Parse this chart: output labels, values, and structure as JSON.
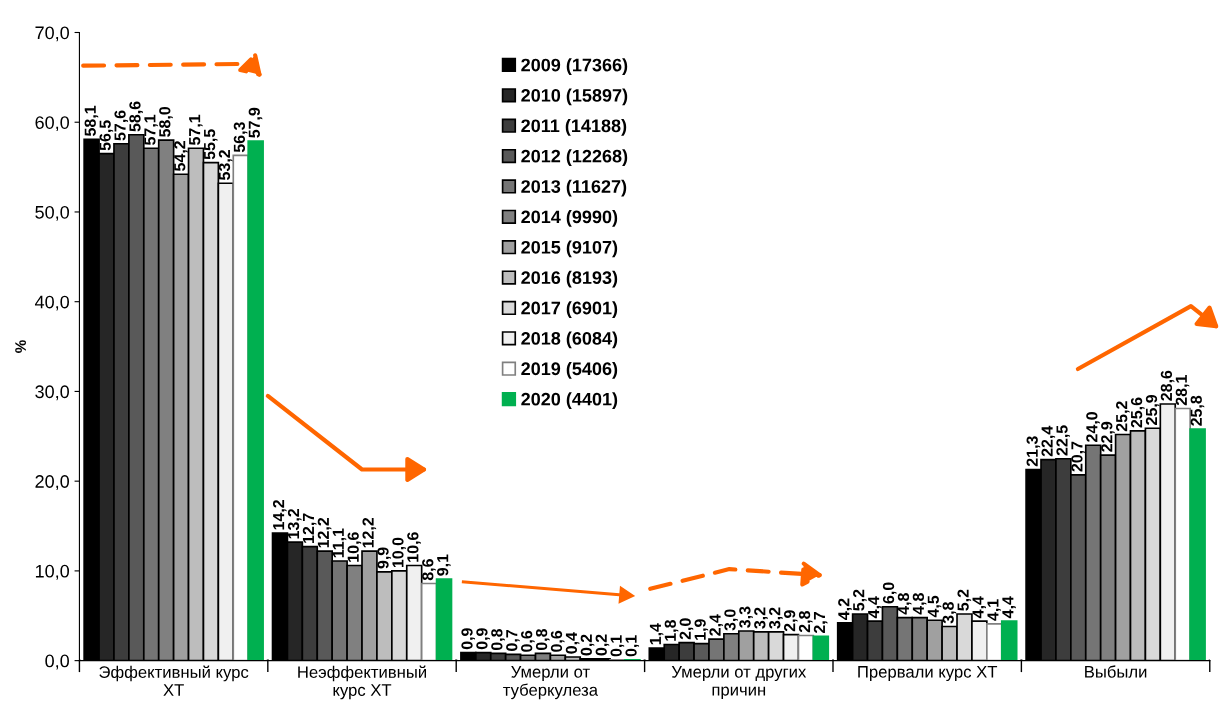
{
  "chart_data": {
    "type": "bar",
    "ylabel": "%",
    "categories": [
      "Эффективный курс\nХТ",
      "Неэффективный\nкурс ХТ",
      "Умерли от\nтуберкулеза",
      "Умерли от других\nпричин",
      "Прервали курс ХТ",
      "Выбыли"
    ],
    "ylim": [
      0,
      70
    ],
    "yticks": [
      {
        "value": 0,
        "label": "0,0"
      },
      {
        "value": 10,
        "label": "10,0"
      },
      {
        "value": 20,
        "label": "20,0"
      },
      {
        "value": 30,
        "label": "30,0"
      },
      {
        "value": 40,
        "label": "40,0"
      },
      {
        "value": 50,
        "label": "50,0"
      },
      {
        "value": 60,
        "label": "60,0"
      },
      {
        "value": 70,
        "label": "70,0"
      }
    ],
    "grid": false,
    "legend": "top",
    "series": [
      {
        "name": "2009 (17366)",
        "color": "#000000",
        "values": [
          58.1,
          14.2,
          0.9,
          1.4,
          4.2,
          21.3
        ],
        "value_labels": [
          "58,1",
          "14,2",
          "0,9",
          "1,4",
          "4,2",
          "21,3"
        ]
      },
      {
        "name": "2010 (15897)",
        "color": "#262626",
        "values": [
          56.5,
          13.2,
          0.9,
          1.8,
          5.2,
          22.4
        ],
        "value_labels": [
          "56,5",
          "13,2",
          "0,9",
          "1,8",
          "5,2",
          "22,4"
        ]
      },
      {
        "name": "2011 (14188)",
        "color": "#3d3d3d",
        "values": [
          57.6,
          12.7,
          0.8,
          2.0,
          4.4,
          22.5
        ],
        "value_labels": [
          "57,6",
          "12,7",
          "0,8",
          "2,0",
          "4,4",
          "22,5"
        ]
      },
      {
        "name": "2012 (12268)",
        "color": "#595959",
        "values": [
          58.6,
          12.2,
          0.7,
          1.9,
          6.0,
          20.7
        ],
        "value_labels": [
          "58,6",
          "12,2",
          "0,7",
          "1,9",
          "6,0",
          "20,7"
        ]
      },
      {
        "name": "2013 (11627)",
        "color": "#757575",
        "values": [
          57.1,
          11.1,
          0.6,
          2.4,
          4.8,
          24.0
        ],
        "value_labels": [
          "57,1",
          "11,1",
          "0,6",
          "2,4",
          "4,8",
          "24,0"
        ]
      },
      {
        "name": "2014 (9990)",
        "color": "#808080",
        "values": [
          58.0,
          10.6,
          0.8,
          3.0,
          4.8,
          22.9
        ],
        "value_labels": [
          "58,0",
          "10,6",
          "0,8",
          "3,0",
          "4,8",
          "22,9"
        ]
      },
      {
        "name": "2015 (9107)",
        "color": "#a0a0a0",
        "values": [
          54.2,
          12.2,
          0.6,
          3.3,
          4.5,
          25.2
        ],
        "value_labels": [
          "54,2",
          "12,2",
          "0,6",
          "3,3",
          "4,5",
          "25,2"
        ]
      },
      {
        "name": "2016 (8193)",
        "color": "#bdbdbd",
        "values": [
          57.1,
          9.9,
          0.4,
          3.2,
          3.8,
          25.6
        ],
        "value_labels": [
          "57,1",
          "9,9",
          "0,4",
          "3,2",
          "3,8",
          "25,6"
        ]
      },
      {
        "name": "2017 (6901)",
        "color": "#d9d9d9",
        "values": [
          55.5,
          10.0,
          0.2,
          3.2,
          5.2,
          25.9
        ],
        "value_labels": [
          "55,5",
          "10,0",
          "0,2",
          "3,2",
          "5,2",
          "25,9"
        ]
      },
      {
        "name": "2018 (6084)",
        "color": "#f0f0f0",
        "values": [
          53.2,
          10.6,
          0.2,
          2.9,
          4.4,
          28.6
        ],
        "value_labels": [
          "53,2",
          "10,6",
          "0,2",
          "2,9",
          "4,4",
          "28,6"
        ]
      },
      {
        "name": "2019 (5406)",
        "color": "#ffffff",
        "values": [
          56.3,
          8.6,
          0.1,
          2.8,
          4.1,
          28.1
        ],
        "value_labels": [
          "56,3",
          "8,6",
          "0,1",
          "2,8",
          "4,1",
          "28,1"
        ]
      },
      {
        "name": "2020 (4401)",
        "color": "#00b050",
        "values": [
          57.9,
          9.1,
          0.1,
          2.7,
          4.4,
          25.8
        ],
        "value_labels": [
          "57,9",
          "9,1",
          "0,1",
          "2,7",
          "4,4",
          "25,8"
        ]
      }
    ]
  }
}
